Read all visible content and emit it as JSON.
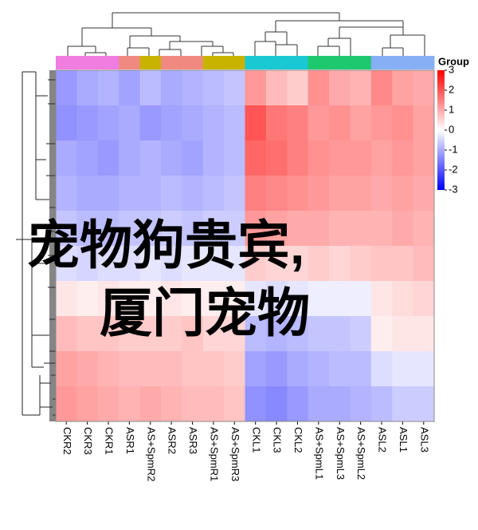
{
  "chart_data": {
    "type": "heatmap",
    "columns": [
      "CKR2",
      "CKR3",
      "CKR1",
      "ASR1",
      "AS+SpmR2",
      "ASR2",
      "ASR3",
      "AS+SpmR1",
      "AS+SpmR3",
      "CKL1",
      "CKL3",
      "CKL2",
      "AS+SpmL1",
      "AS+SpmL3",
      "AS+SpmL2",
      "ASL2",
      "ASL1",
      "ASL3"
    ],
    "rows": [
      null,
      null,
      null,
      null,
      null,
      null,
      null,
      null,
      null,
      null
    ],
    "values": [
      [
        -1.2,
        -1,
        -0.9,
        -1.1,
        -0.8,
        -1,
        -0.9,
        -0.8,
        -0.7,
        1.2,
        0.8,
        0.6,
        1.3,
        1.0,
        0.9,
        1.4,
        1.1,
        1.0
      ],
      [
        -1.3,
        -1.2,
        -1.1,
        -1.0,
        -1.2,
        -1.1,
        -1.0,
        -0.9,
        -0.8,
        2.0,
        1.6,
        1.5,
        1.2,
        1.3,
        1.1,
        1.2,
        1.3,
        1.1
      ],
      [
        -1.0,
        -1.1,
        -1.2,
        -1.0,
        -0.9,
        -1.0,
        -1.1,
        -0.9,
        -0.8,
        1.8,
        1.7,
        1.5,
        1.3,
        1.2,
        1.2,
        1.1,
        1.2,
        1.1
      ],
      [
        -0.9,
        -1.0,
        -1.0,
        -0.9,
        -0.9,
        -0.8,
        -0.9,
        -0.8,
        -0.7,
        1.5,
        1.4,
        1.3,
        1.2,
        1.1,
        1.1,
        1.0,
        1.1,
        1.0
      ],
      [
        -0.7,
        -0.8,
        -0.8,
        -0.7,
        -0.7,
        -0.6,
        -0.7,
        -0.6,
        -0.6,
        1.2,
        1.1,
        1.0,
        1.0,
        0.9,
        0.9,
        0.9,
        1.0,
        0.9
      ],
      [
        -0.4,
        -0.5,
        -0.4,
        -0.4,
        -0.3,
        -0.4,
        -0.3,
        -0.3,
        -0.3,
        0.6,
        0.5,
        0.5,
        0.6,
        0.5,
        0.6,
        0.7,
        0.7,
        0.8
      ],
      [
        0.3,
        0.2,
        0.3,
        0.2,
        0.2,
        0.3,
        0.2,
        0.2,
        0.2,
        -0.3,
        -0.4,
        -0.3,
        -0.2,
        -0.2,
        -0.2,
        0.3,
        0.4,
        0.5
      ],
      [
        0.8,
        0.7,
        0.7,
        0.6,
        0.6,
        0.6,
        0.7,
        0.5,
        0.5,
        -0.8,
        -0.9,
        -0.8,
        -0.7,
        -0.7,
        -0.6,
        0.2,
        0.3,
        0.3
      ],
      [
        1.1,
        1.0,
        0.9,
        0.8,
        0.8,
        0.8,
        0.7,
        0.7,
        0.6,
        -1.1,
        -1.2,
        -1.0,
        -0.9,
        -0.8,
        -0.8,
        -0.4,
        -0.3,
        -0.3
      ],
      [
        1.2,
        1.1,
        1.0,
        0.9,
        1.0,
        0.9,
        0.8,
        0.8,
        0.7,
        -1.3,
        -1.4,
        -1.2,
        -1.0,
        -1.0,
        -0.9,
        -0.8,
        -0.6,
        -0.6
      ]
    ],
    "group_colors": [
      "#f07de0",
      "#f07de0",
      "#f07de0",
      "#f08a80",
      "#c8b400",
      "#f08a80",
      "#f08a80",
      "#c8b400",
      "#c8b400",
      "#19c8d2",
      "#19c8d2",
      "#19c8d2",
      "#1ec86e",
      "#1ec86e",
      "#1ec86e",
      "#87aff5",
      "#87aff5",
      "#87aff5"
    ],
    "legend_title": "Group",
    "clim": [
      -3,
      3
    ],
    "cticks": [
      3,
      2,
      1,
      0,
      -1,
      -2,
      -3
    ],
    "annotations": [
      "宠物狗贵宾,",
      "厦门宠物"
    ],
    "annotation_color": "#ff28f0"
  }
}
